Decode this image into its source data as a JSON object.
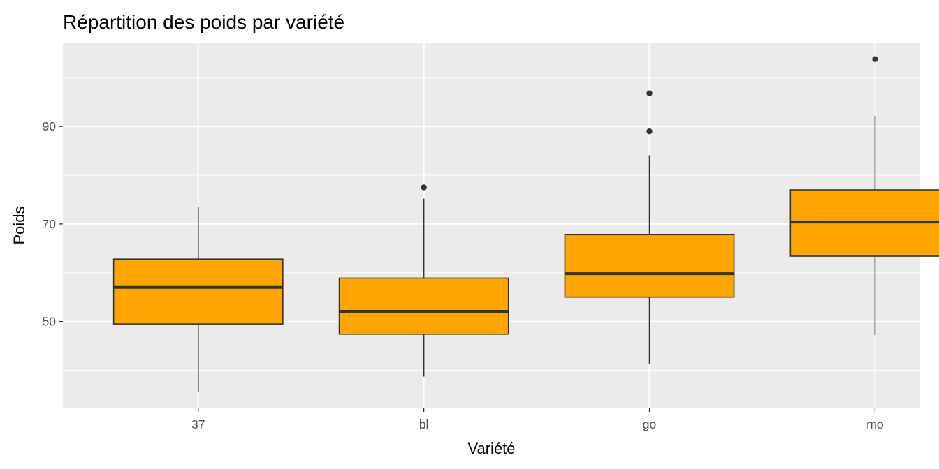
{
  "chart_data": {
    "type": "boxplot",
    "title": "Répartition des poids par variété",
    "xlabel": "Variété",
    "ylabel": "Poids",
    "categories": [
      "37",
      "bl",
      "go",
      "mo"
    ],
    "boxes": [
      {
        "category": "37",
        "whisker_low": 35.5,
        "q1": 49.5,
        "median": 57.0,
        "q3": 62.8,
        "whisker_high": 73.5,
        "outliers": []
      },
      {
        "category": "bl",
        "whisker_low": 38.7,
        "q1": 47.4,
        "median": 52.1,
        "q3": 58.9,
        "whisker_high": 75.2,
        "outliers": [
          77.5
        ]
      },
      {
        "category": "go",
        "whisker_low": 41.3,
        "q1": 55.0,
        "median": 59.8,
        "q3": 67.8,
        "whisker_high": 84.1,
        "outliers": [
          89.0,
          96.8
        ]
      },
      {
        "category": "mo",
        "whisker_low": 47.2,
        "q1": 63.4,
        "median": 70.4,
        "q3": 77.0,
        "whisker_high": 92.2,
        "outliers": [
          103.8
        ]
      }
    ],
    "yticks": [
      50,
      70,
      90
    ],
    "ylim": [
      32.2,
      107.2
    ],
    "grid": true,
    "colors": {
      "box_fill": "#FFA500",
      "box_stroke": "#333333",
      "panel_background": "#EBEBEB",
      "grid": "#FFFFFF"
    }
  }
}
